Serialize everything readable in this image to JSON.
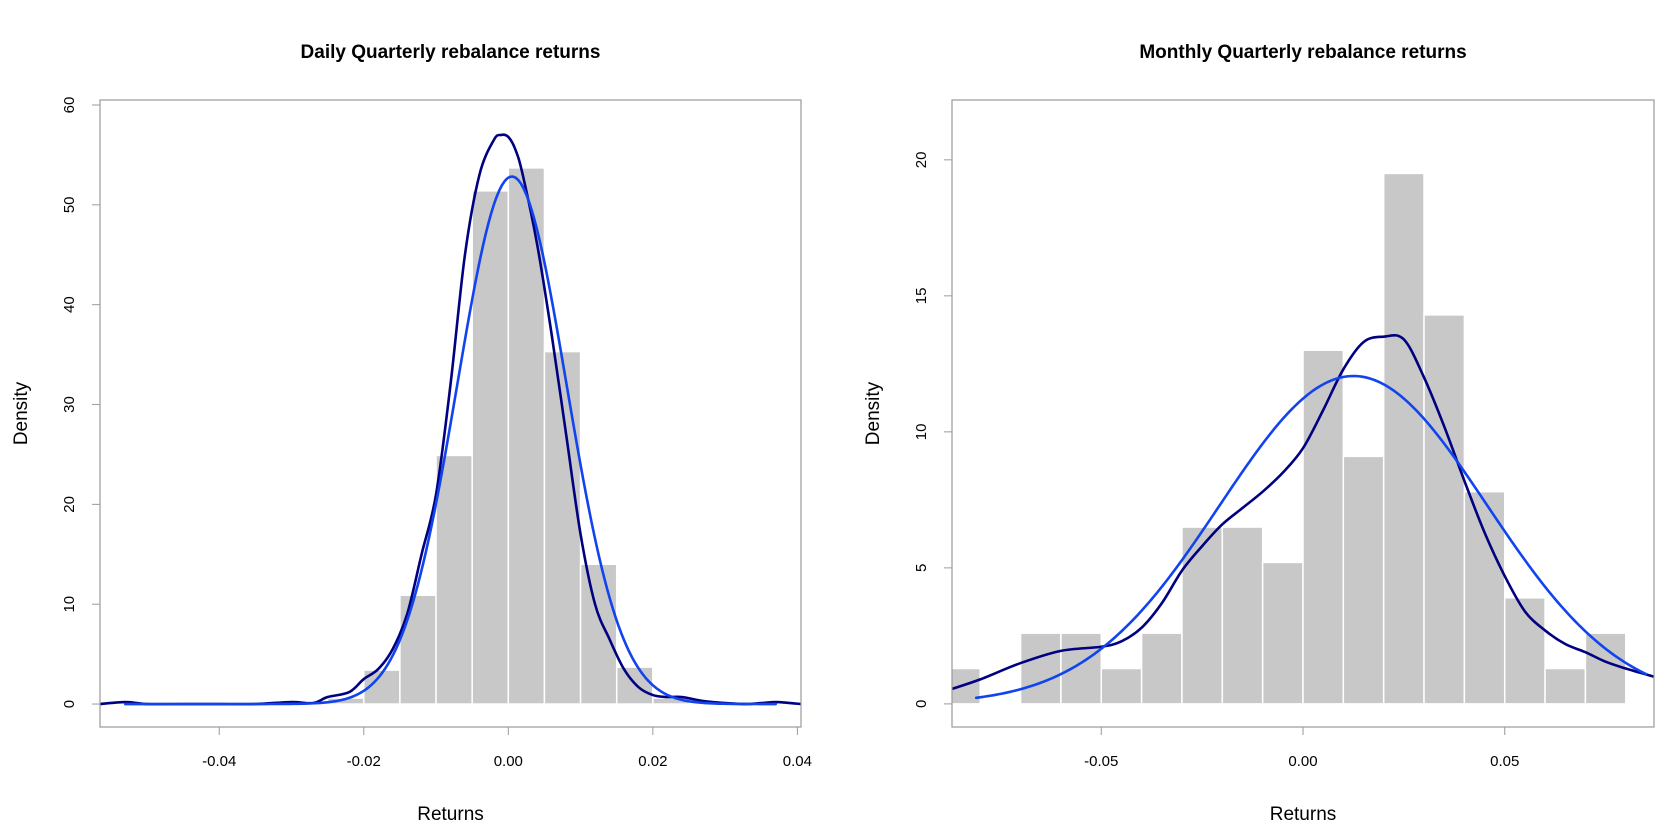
{
  "chart_data": [
    {
      "type": "bar",
      "title": "Daily Quarterly rebalance returns",
      "xlabel": "Returns",
      "ylabel": "Density",
      "xlim": [
        -0.0565,
        0.0405
      ],
      "ylim": [
        -2.3,
        60.5
      ],
      "xticks": [
        -0.04,
        -0.02,
        0.0,
        0.02,
        0.04
      ],
      "xtick_labels": [
        "-0.04",
        "-0.02",
        "0.00",
        "0.02",
        "0.04"
      ],
      "yticks": [
        0,
        10,
        20,
        30,
        40,
        50,
        60
      ],
      "ytick_labels": [
        "0",
        "10",
        "20",
        "30",
        "40",
        "50",
        "60"
      ],
      "bin_edges": [
        -0.025,
        -0.02,
        -0.015,
        -0.01,
        -0.005,
        0.0,
        0.005,
        0.01,
        0.015,
        0.02,
        0.025
      ],
      "values": [
        0.6,
        3.4,
        10.9,
        24.9,
        51.4,
        53.7,
        35.3,
        14.0,
        3.7,
        0.6
      ],
      "bar_color": "#c8c8c8",
      "series": [
        {
          "kind": "kernel-density",
          "color": "#000080",
          "x": [
            -0.0565,
            -0.053,
            -0.05,
            -0.045,
            -0.04,
            -0.035,
            -0.03,
            -0.027,
            -0.025,
            -0.022,
            -0.02,
            -0.018,
            -0.016,
            -0.014,
            -0.012,
            -0.01,
            -0.008,
            -0.006,
            -0.004,
            -0.002,
            -0.001,
            0.0,
            0.001,
            0.002,
            0.004,
            0.006,
            0.008,
            0.01,
            0.012,
            0.014,
            0.016,
            0.018,
            0.02,
            0.022,
            0.024,
            0.027,
            0.03,
            0.033,
            0.035,
            0.037,
            0.039,
            0.0405
          ],
          "y": [
            0.0,
            0.2,
            0.0,
            0.0,
            0.0,
            0.0,
            0.2,
            0.1,
            0.7,
            1.2,
            2.5,
            3.5,
            5.5,
            9.0,
            15.0,
            21.0,
            32.0,
            45.0,
            53.0,
            56.5,
            57.0,
            56.8,
            55.5,
            53.0,
            46.0,
            37.0,
            27.0,
            17.0,
            10.0,
            6.5,
            3.5,
            1.7,
            0.9,
            0.7,
            0.7,
            0.3,
            0.1,
            0.0,
            0.1,
            0.2,
            0.1,
            0.0
          ]
        },
        {
          "kind": "normal-fit",
          "color": "#1144ee",
          "mean": 0.0005,
          "sd": 0.00755,
          "x_range": [
            -0.053,
            0.037
          ]
        }
      ]
    },
    {
      "type": "bar",
      "title": "Monthly Quarterly rebalance returns",
      "xlabel": "Returns",
      "ylabel": "Density",
      "xlim": [
        -0.087,
        0.087
      ],
      "ylim": [
        -0.85,
        22.2
      ],
      "xticks": [
        -0.05,
        0.0,
        0.05
      ],
      "xtick_labels": [
        "-0.05",
        "0.00",
        "0.05"
      ],
      "yticks": [
        0,
        5,
        10,
        15,
        20
      ],
      "ytick_labels": [
        "0",
        "5",
        "10",
        "15",
        "20"
      ],
      "bin_edges": [
        -0.09,
        -0.08,
        -0.07,
        -0.06,
        -0.05,
        -0.04,
        -0.03,
        -0.02,
        -0.01,
        0.0,
        0.01,
        0.02,
        0.03,
        0.04,
        0.05,
        0.06,
        0.07,
        0.08
      ],
      "values": [
        1.3,
        0.0,
        2.6,
        2.6,
        1.3,
        2.6,
        6.5,
        6.5,
        5.2,
        13.0,
        9.1,
        19.5,
        14.3,
        7.8,
        3.9,
        1.3,
        2.6
      ],
      "bar_color": "#c8c8c8",
      "series": [
        {
          "kind": "kernel-density",
          "color": "#000080",
          "x": [
            -0.087,
            -0.08,
            -0.07,
            -0.06,
            -0.05,
            -0.045,
            -0.04,
            -0.035,
            -0.03,
            -0.025,
            -0.02,
            -0.015,
            -0.01,
            -0.005,
            0.0,
            0.005,
            0.01,
            0.015,
            0.02,
            0.025,
            0.03,
            0.035,
            0.04,
            0.045,
            0.05,
            0.055,
            0.06,
            0.065,
            0.07,
            0.075,
            0.08,
            0.087
          ],
          "y": [
            0.55,
            0.9,
            1.5,
            1.95,
            2.1,
            2.3,
            2.8,
            3.7,
            4.9,
            5.8,
            6.6,
            7.2,
            7.8,
            8.5,
            9.4,
            10.8,
            12.3,
            13.3,
            13.5,
            13.4,
            12.0,
            10.2,
            8.2,
            6.3,
            4.7,
            3.4,
            2.7,
            2.2,
            1.9,
            1.55,
            1.3,
            1.0
          ]
        },
        {
          "kind": "normal-fit",
          "color": "#1144ee",
          "mean": 0.0125,
          "sd": 0.0331,
          "x_range": [
            -0.081,
            0.085
          ]
        }
      ]
    }
  ]
}
